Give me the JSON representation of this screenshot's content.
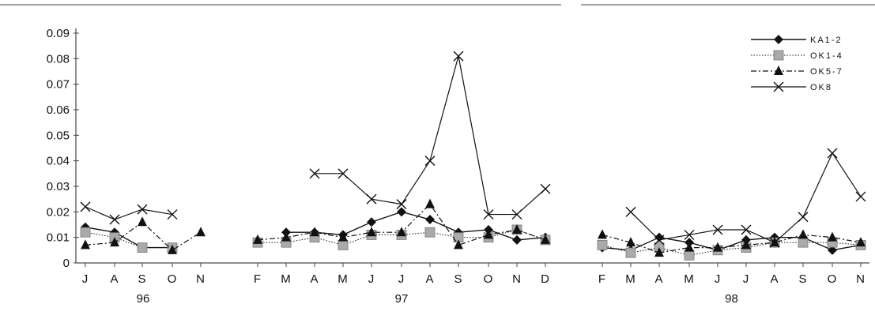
{
  "chart_data": {
    "type": "line",
    "ylim": [
      0,
      0.09
    ],
    "yticks": [
      "0",
      "0.01",
      "0.02",
      "0.03",
      "0.04",
      "0.05",
      "0.06",
      "0.07",
      "0.08",
      "0.09"
    ],
    "groups": [
      {
        "year": "96",
        "months": [
          "J",
          "A",
          "S",
          "O",
          "N"
        ]
      },
      {
        "year": "97",
        "months": [
          "F",
          "M",
          "A",
          "M",
          "J",
          "J",
          "A",
          "S",
          "O",
          "N",
          "D"
        ]
      },
      {
        "year": "98",
        "months": [
          "F",
          "M",
          "A",
          "M",
          "J",
          "J",
          "A",
          "S",
          "O",
          "N"
        ]
      }
    ],
    "legend_position": "top-right",
    "series": [
      {
        "name": "KA1-2",
        "values": [
          [
            0.014,
            0.012,
            0.006,
            0.006,
            null
          ],
          [
            null,
            0.012,
            0.012,
            0.011,
            0.016,
            0.02,
            0.017,
            0.012,
            0.013,
            0.009,
            0.01
          ],
          [
            0.006,
            0.005,
            0.01,
            0.008,
            0.005,
            0.009,
            0.01,
            0.01,
            0.005,
            0.007
          ]
        ]
      },
      {
        "name": "OK1-4",
        "values": [
          [
            0.012,
            0.01,
            0.006,
            0.006,
            null
          ],
          [
            0.008,
            0.008,
            0.01,
            0.007,
            0.011,
            0.011,
            0.012,
            0.01,
            0.01,
            0.013,
            0.009
          ],
          [
            0.007,
            0.004,
            0.006,
            0.003,
            0.005,
            0.006,
            0.008,
            0.008,
            0.008,
            0.007
          ]
        ]
      },
      {
        "name": "OK5-7",
        "values": [
          [
            0.007,
            0.008,
            0.016,
            0.005,
            0.012
          ],
          [
            0.009,
            0.01,
            0.012,
            0.01,
            0.012,
            0.012,
            0.023,
            0.007,
            0.011,
            0.013,
            0.009
          ],
          [
            0.011,
            0.008,
            0.004,
            0.006,
            0.006,
            0.007,
            0.008,
            0.011,
            0.01,
            0.008
          ]
        ]
      },
      {
        "name": "OK8",
        "values": [
          [
            0.022,
            0.017,
            0.021,
            0.019,
            null
          ],
          [
            null,
            null,
            0.035,
            0.035,
            0.025,
            0.023,
            0.04,
            0.081,
            0.019,
            0.019,
            0.029
          ],
          [
            null,
            0.02,
            0.009,
            0.011,
            0.013,
            0.013,
            0.008,
            0.018,
            0.043,
            0.026
          ]
        ]
      }
    ]
  }
}
